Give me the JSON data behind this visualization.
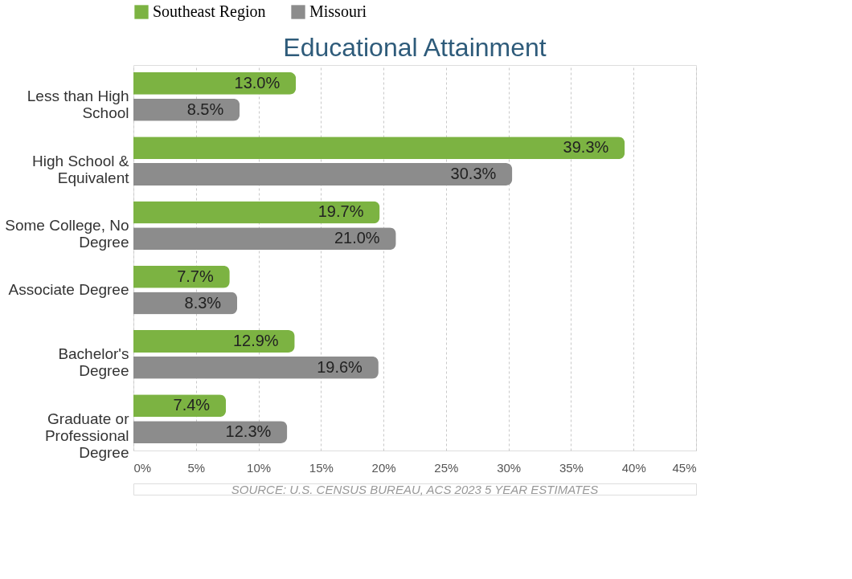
{
  "chart_data": {
    "type": "bar",
    "orientation": "horizontal",
    "title": "Educational Attainment",
    "categories": [
      "Less than High School",
      "High School & Equivalent",
      "Some College, No Degree",
      "Associate Degree",
      "Bachelor's Degree",
      "Graduate or Professional Degree"
    ],
    "series": [
      {
        "name": "Southeast Region",
        "color": "#7cb342",
        "values": [
          13.0,
          39.3,
          19.7,
          7.7,
          12.9,
          7.4
        ],
        "value_labels": [
          "13.0%",
          "39.3%",
          "19.7%",
          "7.7%",
          "12.9%",
          "7.4%"
        ]
      },
      {
        "name": "Missouri",
        "color": "#8c8c8c",
        "values": [
          8.5,
          30.3,
          21.0,
          8.3,
          19.6,
          12.3
        ],
        "value_labels": [
          "8.5%",
          "30.3%",
          "21.0%",
          "8.3%",
          "19.6%",
          "12.3%"
        ]
      }
    ],
    "xlim": [
      0,
      45
    ],
    "xticks": [
      {
        "value": 0,
        "label": "0%"
      },
      {
        "value": 5,
        "label": "5%"
      },
      {
        "value": 10,
        "label": "10%"
      },
      {
        "value": 15,
        "label": "15%"
      },
      {
        "value": 20,
        "label": "20%"
      },
      {
        "value": 25,
        "label": "25%"
      },
      {
        "value": 30,
        "label": "30%"
      },
      {
        "value": 35,
        "label": "35%"
      },
      {
        "value": 40,
        "label": "40%"
      },
      {
        "value": 45,
        "label": "45%"
      }
    ],
    "grid": "x",
    "legend": "top",
    "annotations": [
      "SOURCE: U.S. CENSUS BUREAU, ACS 2023 5 YEAR ESTIMATES"
    ]
  }
}
